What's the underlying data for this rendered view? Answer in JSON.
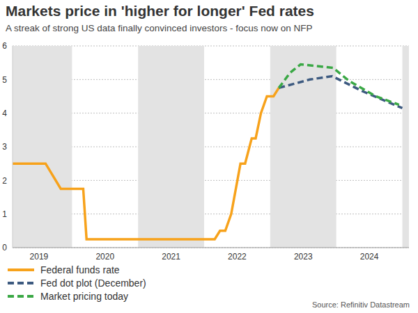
{
  "chart_data": {
    "type": "line",
    "title": "Markets price in 'higher for longer' Fed rates",
    "subtitle": "A streak of strong US data finally convinced investors - focus now on NFP",
    "source": "Source: Refinitiv Datastream",
    "xlim": [
      2019.1,
      2025.1
    ],
    "xticks": [
      {
        "value": 2019.5,
        "label": "2019"
      },
      {
        "value": 2020.5,
        "label": "2020"
      },
      {
        "value": 2021.5,
        "label": "2021"
      },
      {
        "value": 2022.5,
        "label": "2022"
      },
      {
        "value": 2023.5,
        "label": "2023"
      },
      {
        "value": 2024.5,
        "label": "2024"
      }
    ],
    "ylim": [
      0,
      6
    ],
    "yticks": [
      0,
      1,
      2,
      3,
      4,
      5,
      6
    ],
    "grid": true,
    "legend": "bottom-left",
    "series": [
      {
        "name": "Federal funds rate",
        "color": "#f7a21b",
        "line_style": "solid",
        "x": [
          2019.1,
          2019.6,
          2019.83,
          2020.17,
          2020.22,
          2022.16,
          2022.24,
          2022.32,
          2022.41,
          2022.55,
          2022.62,
          2022.72,
          2022.78,
          2022.86,
          2022.95,
          2023.05,
          2023.13
        ],
        "values": [
          2.5,
          2.5,
          1.75,
          1.75,
          0.25,
          0.25,
          0.5,
          0.5,
          1.0,
          2.5,
          2.5,
          3.25,
          3.25,
          4.0,
          4.5,
          4.5,
          4.75
        ]
      },
      {
        "name": "Fed dot plot (December)",
        "color": "#3d5a80",
        "line_style": "dashed",
        "x": [
          2023.13,
          2023.6,
          2023.94,
          2024.4,
          2025.0
        ],
        "values": [
          4.75,
          5.0,
          5.1,
          4.65,
          4.15
        ]
      },
      {
        "name": "Market pricing today",
        "color": "#3aa845",
        "line_style": "dashed",
        "x": [
          2023.13,
          2023.3,
          2023.46,
          2023.95,
          2024.2,
          2024.6,
          2024.95
        ],
        "values": [
          4.75,
          5.2,
          5.45,
          5.35,
          4.95,
          4.5,
          4.25
        ]
      }
    ]
  }
}
